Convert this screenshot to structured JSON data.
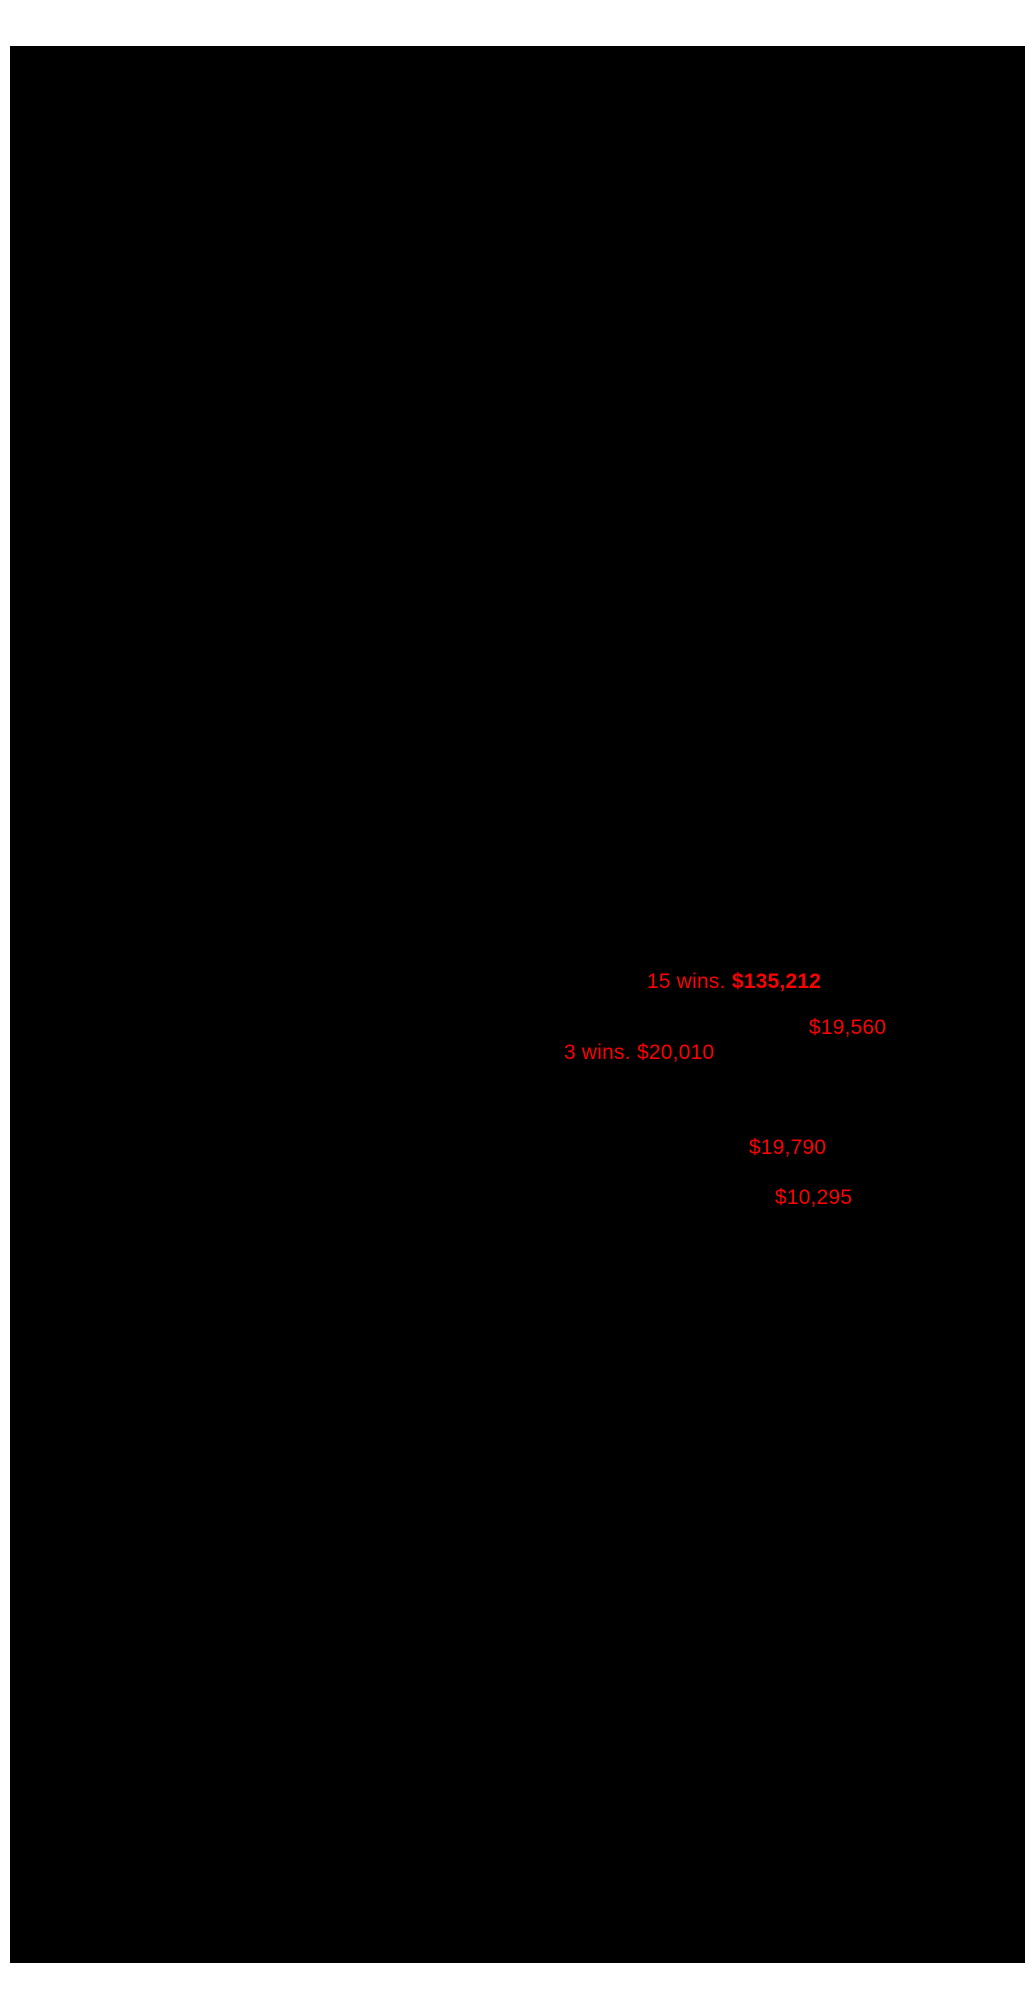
{
  "document": {
    "page_background": "#ffffff",
    "canvas_background": "#000000",
    "annotation_color": "#ff0000",
    "annotations": [
      {
        "label": "15 wins.",
        "value": "$135,212",
        "value_bold": true
      },
      {
        "label": "",
        "value": "$19,560",
        "value_bold": false
      },
      {
        "label": "3 wins.",
        "value": "$20,010",
        "value_bold": false
      },
      {
        "label": "",
        "value": "$19,790",
        "value_bold": false
      },
      {
        "label": "",
        "value": "$10,295",
        "value_bold": false
      }
    ]
  }
}
